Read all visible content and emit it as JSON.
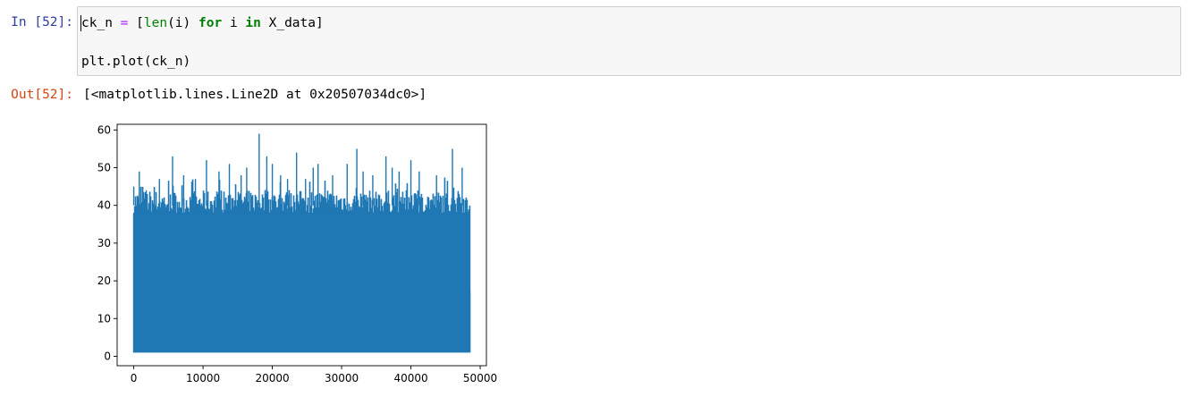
{
  "cell": {
    "in_prompt": "In [52]:",
    "out_prompt": "Out[52]:",
    "code": {
      "line1": {
        "var": "ck_n",
        "op": "=",
        "open": "[",
        "builtin": "len",
        "arg": "(i)",
        "kw_for": "for",
        "iter_var": "i",
        "kw_in": "in",
        "iterable": "X_data]"
      },
      "line2": "plt.plot(ck_n)"
    },
    "output_text": "[<matplotlib.lines.Line2D at 0x20507034dc0>]"
  },
  "colors": {
    "in_prompt": "#303f9f",
    "out_prompt": "#d84315",
    "series": "#1f77b4",
    "input_bg": "#f7f7f7"
  },
  "chart_data": {
    "type": "line",
    "title": "",
    "xlabel": "",
    "ylabel": "",
    "xlim": [
      -2400,
      50900
    ],
    "ylim": [
      -2.5,
      61.5
    ],
    "xticks": [
      0,
      10000,
      20000,
      30000,
      40000,
      50000
    ],
    "xtick_labels": [
      "0",
      "10000",
      "20000",
      "30000",
      "40000",
      "50000"
    ],
    "yticks": [
      0,
      10,
      20,
      30,
      40,
      50,
      60
    ],
    "ytick_labels": [
      "0",
      "10",
      "20",
      "30",
      "40",
      "50",
      "60"
    ],
    "grid": false,
    "legend": "none",
    "series": [
      {
        "n_points": 48500,
        "x_range": [
          0,
          48500
        ],
        "min_value": 1,
        "typical_max": 42,
        "peaks": [
          {
            "x": 0,
            "y": 45
          },
          {
            "x": 800,
            "y": 49
          },
          {
            "x": 1800,
            "y": 44
          },
          {
            "x": 3700,
            "y": 47
          },
          {
            "x": 5600,
            "y": 53
          },
          {
            "x": 7200,
            "y": 48
          },
          {
            "x": 8900,
            "y": 47
          },
          {
            "x": 10500,
            "y": 52
          },
          {
            "x": 12300,
            "y": 49
          },
          {
            "x": 13800,
            "y": 51
          },
          {
            "x": 15500,
            "y": 48
          },
          {
            "x": 16300,
            "y": 50
          },
          {
            "x": 18100,
            "y": 59
          },
          {
            "x": 19200,
            "y": 53
          },
          {
            "x": 20000,
            "y": 51
          },
          {
            "x": 21200,
            "y": 48
          },
          {
            "x": 22200,
            "y": 47
          },
          {
            "x": 23500,
            "y": 54
          },
          {
            "x": 24800,
            "y": 47
          },
          {
            "x": 25900,
            "y": 50
          },
          {
            "x": 26600,
            "y": 51
          },
          {
            "x": 28700,
            "y": 48
          },
          {
            "x": 30800,
            "y": 51
          },
          {
            "x": 32200,
            "y": 55
          },
          {
            "x": 33100,
            "y": 49
          },
          {
            "x": 34500,
            "y": 48
          },
          {
            "x": 36400,
            "y": 53
          },
          {
            "x": 37300,
            "y": 50
          },
          {
            "x": 38300,
            "y": 49
          },
          {
            "x": 40000,
            "y": 52
          },
          {
            "x": 41200,
            "y": 49
          },
          {
            "x": 43700,
            "y": 48
          },
          {
            "x": 46000,
            "y": 55
          },
          {
            "x": 47400,
            "y": 50
          }
        ]
      }
    ]
  }
}
